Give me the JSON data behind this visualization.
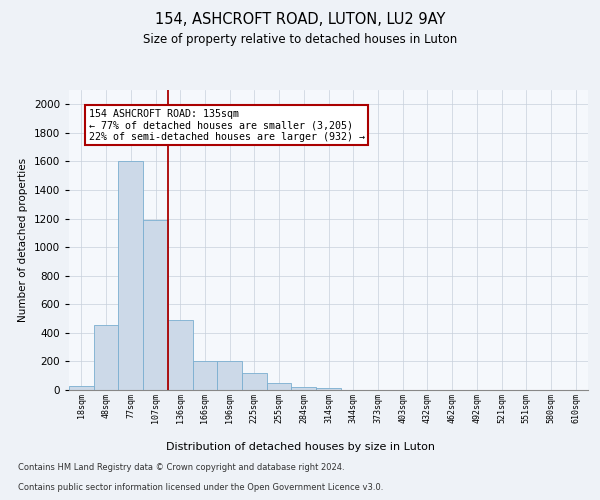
{
  "title": "154, ASHCROFT ROAD, LUTON, LU2 9AY",
  "subtitle": "Size of property relative to detached houses in Luton",
  "xlabel": "Distribution of detached houses by size in Luton",
  "ylabel": "Number of detached properties",
  "footer_line1": "Contains HM Land Registry data © Crown copyright and database right 2024.",
  "footer_line2": "Contains public sector information licensed under the Open Government Licence v3.0.",
  "bin_labels": [
    "18sqm",
    "48sqm",
    "77sqm",
    "107sqm",
    "136sqm",
    "166sqm",
    "196sqm",
    "225sqm",
    "255sqm",
    "284sqm",
    "314sqm",
    "344sqm",
    "373sqm",
    "403sqm",
    "432sqm",
    "462sqm",
    "492sqm",
    "521sqm",
    "551sqm",
    "580sqm",
    "610sqm"
  ],
  "bar_values": [
    30,
    455,
    1600,
    1190,
    490,
    205,
    205,
    120,
    50,
    20,
    15,
    0,
    0,
    0,
    0,
    0,
    0,
    0,
    0,
    0,
    0
  ],
  "bar_color": "#ccd9e8",
  "bar_edgecolor": "#7aaed0",
  "vline_color": "#aa0000",
  "annotation_text": "154 ASHCROFT ROAD: 135sqm\n← 77% of detached houses are smaller (3,205)\n22% of semi-detached houses are larger (932) →",
  "annotation_box_edgecolor": "#aa0000",
  "ylim": [
    0,
    2100
  ],
  "yticks": [
    0,
    200,
    400,
    600,
    800,
    1000,
    1200,
    1400,
    1600,
    1800,
    2000
  ],
  "background_color": "#eef2f7",
  "plot_background": "#f5f8fc",
  "grid_color": "#c8d0dc"
}
